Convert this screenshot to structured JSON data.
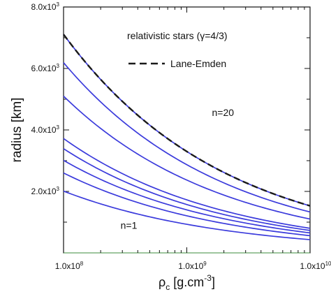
{
  "chart_data": {
    "type": "line",
    "annotation_title": "relativistic stars (γ=4/3)",
    "legend": {
      "entries": [
        {
          "label": "Lane-Emden",
          "style": "dashed",
          "color": "#1a1a1a"
        }
      ],
      "placement": "top-right"
    },
    "xlabel": {
      "base": "ρ",
      "sub": "c",
      "unit_open": " [g.cm",
      "unit_sup": "-3",
      "unit_close": "]"
    },
    "ylabel": "radius [km]",
    "x_scale": "log",
    "xlim": [
      100000000.0,
      10000000000.0
    ],
    "ylim": [
      0,
      8000
    ],
    "x_ticks": [
      {
        "value": 100000000.0,
        "mant": "1.0x10",
        "exp": "8"
      },
      {
        "value": 1000000000.0,
        "mant": "1.0x10",
        "exp": "9"
      },
      {
        "value": 10000000000.0,
        "mant": "1.0x10",
        "exp": "10"
      }
    ],
    "y_ticks": [
      {
        "value": 2000,
        "mant": "2.0x10",
        "exp": "3"
      },
      {
        "value": 4000,
        "mant": "4.0x10",
        "exp": "3"
      },
      {
        "value": 6000,
        "mant": "6.0x10",
        "exp": "3"
      },
      {
        "value": 8000,
        "mant": "8.0x10",
        "exp": "3"
      }
    ],
    "y_minor_ticks": [
      1000,
      3000,
      5000,
      7000
    ],
    "annotations": [
      {
        "text": "n=20",
        "x": 1600000000.0,
        "y": 4450
      },
      {
        "text": "n=1",
        "x": 290000000.0,
        "y": 780
      }
    ],
    "series_color": "#3b3bdc",
    "reference": {
      "label": "Lane-Emden",
      "x": [
        100000000.0,
        10000000000.0
      ],
      "y": [
        7110,
        1530
      ]
    },
    "series": [
      {
        "x": [
          100000000.0,
          10000000000.0
        ],
        "y": [
          7110,
          1530
        ]
      },
      {
        "x": [
          100000000.0,
          10000000000.0
        ],
        "y": [
          6190,
          1330
        ]
      },
      {
        "x": [
          100000000.0,
          10000000000.0
        ],
        "y": [
          5100,
          1100
        ]
      },
      {
        "x": [
          100000000.0,
          10000000000.0
        ],
        "y": [
          3720,
          800
        ]
      },
      {
        "x": [
          100000000.0,
          10000000000.0
        ],
        "y": [
          3390,
          730
        ]
      },
      {
        "x": [
          100000000.0,
          10000000000.0
        ],
        "y": [
          3010,
          650
        ]
      },
      {
        "x": [
          100000000.0,
          10000000000.0
        ],
        "y": [
          2600,
          560
        ]
      },
      {
        "x": [
          100000000.0,
          10000000000.0
        ],
        "y": [
          2010,
          430
        ]
      }
    ]
  }
}
